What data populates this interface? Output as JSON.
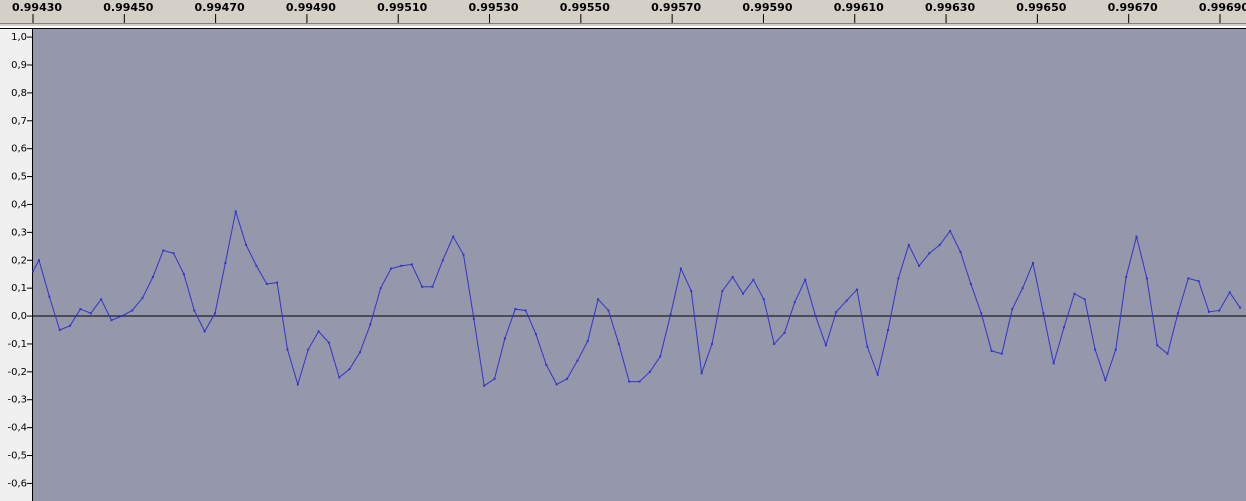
{
  "chart_data": {
    "type": "line",
    "x": [
      0.9943,
      0.9943131,
      0.9943358,
      0.9943585,
      0.9943811,
      0.9944038,
      0.9944265,
      0.9944492,
      0.9944719,
      0.9944945,
      0.9945172,
      0.9945399,
      0.9945626,
      0.9945853,
      0.9946079,
      0.9946306,
      0.9946533,
      0.994676,
      0.9946987,
      0.9947213,
      0.994744,
      0.9947667,
      0.9947894,
      0.9948121,
      0.9948347,
      0.9948574,
      0.9948801,
      0.9949028,
      0.9949255,
      0.9949481,
      0.9949708,
      0.9949935,
      0.9950162,
      0.9950389,
      0.9950615,
      0.9950842,
      0.9951069,
      0.9951296,
      0.9951523,
      0.9951749,
      0.9951976,
      0.9952203,
      0.995243,
      0.9952657,
      0.9952883,
      0.995311,
      0.9953337,
      0.9953564,
      0.9953791,
      0.9954017,
      0.9954244,
      0.9954471,
      0.9954698,
      0.9954925,
      0.9955151,
      0.9955378,
      0.9955605,
      0.9955832,
      0.9956059,
      0.9956285,
      0.9956512,
      0.9956739,
      0.9956966,
      0.9957193,
      0.9957419,
      0.9957646,
      0.9957873,
      0.99581,
      0.9958327,
      0.9958553,
      0.995878,
      0.9959007,
      0.9959234,
      0.9959461,
      0.9959687,
      0.9959914,
      0.9960141,
      0.9960368,
      0.9960595,
      0.9960821,
      0.9961048,
      0.9961275,
      0.9961502,
      0.9961729,
      0.9961955,
      0.9962182,
      0.9962409,
      0.9962636,
      0.9962863,
      0.9963089,
      0.9963316,
      0.9963543,
      0.996377,
      0.9963997,
      0.9964223,
      0.996445,
      0.9964677,
      0.9964904,
      0.9965131,
      0.9965357,
      0.9965584,
      0.9965811,
      0.9966038,
      0.9966265,
      0.9966491,
      0.9966718,
      0.9966945,
      0.9967172,
      0.9967399,
      0.9967625,
      0.9967852,
      0.9968079,
      0.9968306,
      0.9968533,
      0.9968759,
      0.9968986,
      0.9969213,
      0.996944
    ],
    "values": [
      0.16,
      0.2,
      0.07,
      -0.05,
      -0.035,
      0.025,
      0.01,
      0.06,
      -0.015,
      0.0,
      0.02,
      0.065,
      0.14,
      0.235,
      0.225,
      0.15,
      0.02,
      -0.055,
      0.01,
      0.19,
      0.375,
      0.255,
      0.18,
      0.115,
      0.12,
      -0.12,
      -0.245,
      -0.12,
      -0.055,
      -0.095,
      -0.22,
      -0.19,
      -0.13,
      -0.03,
      0.1,
      0.17,
      0.18,
      0.185,
      0.105,
      0.105,
      0.2,
      0.285,
      0.22,
      -0.01,
      -0.25,
      -0.225,
      -0.08,
      0.025,
      0.02,
      -0.065,
      -0.175,
      -0.245,
      -0.225,
      -0.16,
      -0.09,
      0.06,
      0.02,
      -0.1,
      -0.235,
      -0.235,
      -0.2,
      -0.145,
      0.005,
      0.17,
      0.09,
      -0.205,
      -0.1,
      0.09,
      0.14,
      0.08,
      0.13,
      0.06,
      -0.1,
      -0.06,
      0.05,
      0.13,
      0.0,
      -0.105,
      0.015,
      0.055,
      0.095,
      -0.11,
      -0.21,
      -0.05,
      0.135,
      0.255,
      0.18,
      0.225,
      0.255,
      0.305,
      0.23,
      0.115,
      0.01,
      -0.125,
      -0.135,
      0.025,
      0.1,
      0.19,
      0.01,
      -0.17,
      -0.04,
      0.08,
      0.06,
      -0.12,
      -0.23,
      -0.12,
      0.14,
      0.285,
      0.135,
      -0.105,
      -0.135,
      0.01,
      0.135,
      0.125,
      0.015,
      0.02,
      0.085,
      0.03
    ],
    "color": "#3333cc",
    "xlim": [
      0.9943,
      0.996957
    ],
    "ylim": [
      -0.663,
      1.029
    ],
    "xticks": [
      {
        "value": 0.9943,
        "label": "0.99430"
      },
      {
        "value": 0.9945,
        "label": "0.99450"
      },
      {
        "value": 0.9947,
        "label": "0.99470"
      },
      {
        "value": 0.9949,
        "label": "0.99490"
      },
      {
        "value": 0.9951,
        "label": "0.99510"
      },
      {
        "value": 0.9953,
        "label": "0.99530"
      },
      {
        "value": 0.9955,
        "label": "0.99550"
      },
      {
        "value": 0.9957,
        "label": "0.99570"
      },
      {
        "value": 0.9959,
        "label": "0.99590"
      },
      {
        "value": 0.9961,
        "label": "0.99610"
      },
      {
        "value": 0.9963,
        "label": "0.99630"
      },
      {
        "value": 0.9965,
        "label": "0.99650"
      },
      {
        "value": 0.9967,
        "label": "0.99670"
      },
      {
        "value": 0.9969,
        "label": "0.99690"
      }
    ],
    "yticks": [
      {
        "value": 1.0,
        "label": "1,0"
      },
      {
        "value": 0.9,
        "label": "0,9"
      },
      {
        "value": 0.8,
        "label": "0,8"
      },
      {
        "value": 0.7,
        "label": "0,7"
      },
      {
        "value": 0.6,
        "label": "0,6"
      },
      {
        "value": 0.5,
        "label": "0,5"
      },
      {
        "value": 0.4,
        "label": "0,4"
      },
      {
        "value": 0.3,
        "label": "0,3"
      },
      {
        "value": 0.2,
        "label": "0,2"
      },
      {
        "value": 0.1,
        "label": "0,1"
      },
      {
        "value": 0.0,
        "label": "0,0"
      },
      {
        "value": -0.1,
        "label": "-0,1"
      },
      {
        "value": -0.2,
        "label": "-0,2"
      },
      {
        "value": -0.3,
        "label": "-0,3"
      },
      {
        "value": -0.4,
        "label": "-0,4"
      },
      {
        "value": -0.5,
        "label": "-0,5"
      },
      {
        "value": -0.6,
        "label": "-0,6"
      }
    ]
  }
}
